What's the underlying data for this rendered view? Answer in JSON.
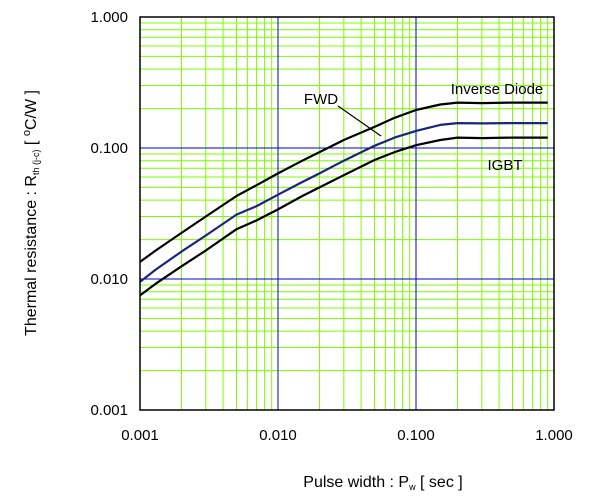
{
  "chart_data": {
    "type": "line",
    "x_scale": "log",
    "y_scale": "log",
    "xlim": [
      0.001,
      1.0
    ],
    "ylim": [
      0.001,
      1.0
    ],
    "grid": true,
    "x_ticks": [
      {
        "value": 0.001,
        "label": "0.001"
      },
      {
        "value": 0.01,
        "label": "0.010"
      },
      {
        "value": 0.1,
        "label": "0.100"
      },
      {
        "value": 1.0,
        "label": "1.000"
      }
    ],
    "y_ticks": [
      {
        "value": 0.001,
        "label": "0.001"
      },
      {
        "value": 0.01,
        "label": "0.010"
      },
      {
        "value": 0.1,
        "label": "0.100"
      },
      {
        "value": 1.0,
        "label": "1.000"
      }
    ],
    "xlabel": {
      "main": "Pulse width : P",
      "sub": "w",
      "tail": " [ sec ]"
    },
    "ylabel": {
      "main": "Thermal resistance : R",
      "sub": "th (j-c)",
      "mid": " [ ",
      "sup": "o",
      "tail": "C/W ]"
    },
    "series": [
      {
        "name": "Inverse Diode",
        "color": "#000000",
        "x": [
          0.001,
          0.0013,
          0.002,
          0.003,
          0.005,
          0.007,
          0.01,
          0.015,
          0.02,
          0.03,
          0.05,
          0.07,
          0.1,
          0.15,
          0.2,
          0.3,
          0.5,
          0.7,
          0.9
        ],
        "y": [
          0.0135,
          0.0165,
          0.0225,
          0.03,
          0.043,
          0.052,
          0.064,
          0.08,
          0.093,
          0.115,
          0.145,
          0.17,
          0.195,
          0.215,
          0.222,
          0.22,
          0.222,
          0.222,
          0.222
        ]
      },
      {
        "name": "FWD",
        "color": "#1a237e",
        "x": [
          0.001,
          0.0013,
          0.002,
          0.003,
          0.005,
          0.007,
          0.01,
          0.015,
          0.02,
          0.03,
          0.05,
          0.07,
          0.1,
          0.15,
          0.2,
          0.3,
          0.5,
          0.7,
          0.9
        ],
        "y": [
          0.0095,
          0.0118,
          0.0162,
          0.0215,
          0.031,
          0.036,
          0.044,
          0.055,
          0.064,
          0.08,
          0.104,
          0.12,
          0.135,
          0.15,
          0.155,
          0.154,
          0.155,
          0.155,
          0.155
        ]
      },
      {
        "name": "IGBT",
        "color": "#000000",
        "x": [
          0.001,
          0.0013,
          0.002,
          0.003,
          0.005,
          0.007,
          0.01,
          0.015,
          0.02,
          0.03,
          0.05,
          0.07,
          0.1,
          0.15,
          0.2,
          0.3,
          0.5,
          0.7,
          0.9
        ],
        "y": [
          0.0075,
          0.0092,
          0.0125,
          0.0165,
          0.024,
          0.028,
          0.034,
          0.043,
          0.05,
          0.062,
          0.081,
          0.093,
          0.105,
          0.115,
          0.12,
          0.119,
          0.12,
          0.12,
          0.12
        ]
      }
    ],
    "annotations": [
      {
        "text": "Inverse Diode",
        "series": "Inverse Diode"
      },
      {
        "text": "FWD",
        "series": "FWD"
      },
      {
        "text": "IGBT",
        "series": "IGBT"
      }
    ],
    "colors": {
      "minor_grid": "#7CFC00",
      "major_grid": "#0000cc",
      "frame": "#000000"
    }
  }
}
